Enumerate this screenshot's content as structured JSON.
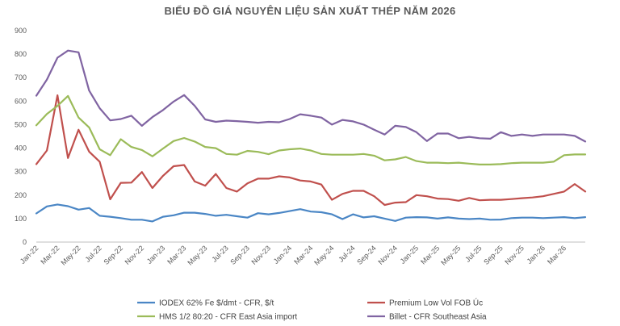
{
  "chart_data": {
    "type": "line",
    "title": "BIỂU ĐỒ GIÁ NGUYÊN LIỆU SẢN XUẤT THÉP NĂM 2026",
    "xlabel": "",
    "ylabel": "",
    "ylim": [
      0,
      900
    ],
    "yticks": [
      0,
      100,
      200,
      300,
      400,
      500,
      600,
      700,
      800,
      900
    ],
    "grid": false,
    "legend_position": "bottom",
    "x_tick_labels": [
      "Jan-22",
      "Mar-22",
      "May-22",
      "Jul-22",
      "Sep-22",
      "Nov-22",
      "Jan-23",
      "Mar-23",
      "May-23",
      "Jul-23",
      "Sep-23",
      "Nov-23",
      "Jan-24",
      "Mar-24",
      "May-24",
      "Jul-24",
      "Sep-24",
      "Nov-24",
      "Jan-25",
      "Mar-25",
      "May-25",
      "Jul-25",
      "Sep-25",
      "Nov-25",
      "Jan-26",
      "Mar-26"
    ],
    "x_step_months": 2,
    "series": [
      {
        "name": "IODEX 62% Fe $/dmt - CFR, $/t",
        "color": "#4a86c5",
        "values": [
          122,
          152,
          160,
          153,
          138,
          145,
          112,
          108,
          102,
          95,
          95,
          88,
          108,
          114,
          125,
          125,
          120,
          112,
          116,
          110,
          104,
          123,
          118,
          124,
          132,
          140,
          130,
          127,
          118,
          98,
          118,
          105,
          110,
          100,
          90,
          104,
          106,
          105,
          100,
          105,
          100,
          98,
          100,
          95,
          96,
          102,
          104,
          104,
          102,
          104,
          106,
          102,
          106
        ]
      },
      {
        "name": "Premium Low Vol FOB Úc",
        "color": "#c0504d",
        "values": [
          332,
          390,
          625,
          358,
          478,
          385,
          342,
          182,
          252,
          253,
          298,
          230,
          282,
          323,
          328,
          258,
          240,
          290,
          230,
          215,
          250,
          270,
          270,
          280,
          275,
          262,
          258,
          245,
          180,
          205,
          218,
          218,
          195,
          158,
          168,
          170,
          200,
          195,
          185,
          183,
          176,
          188,
          178,
          180,
          180,
          183,
          187,
          190,
          195,
          205,
          215,
          247,
          215
        ]
      },
      {
        "name": "HMS 1/2 80:20 - CFR East Asia import",
        "color": "#9bbb59",
        "values": [
          497,
          545,
          580,
          622,
          530,
          488,
          395,
          370,
          438,
          405,
          392,
          365,
          398,
          430,
          443,
          428,
          405,
          400,
          375,
          372,
          388,
          384,
          374,
          390,
          395,
          398,
          390,
          375,
          372,
          372,
          372,
          375,
          368,
          348,
          352,
          362,
          345,
          338,
          338,
          336,
          338,
          334,
          330,
          330,
          332,
          336,
          338,
          338,
          338,
          342,
          370,
          373,
          373
        ]
      },
      {
        "name": "Billet - CFR Southeast Asia",
        "color": "#8064a2",
        "values": [
          623,
          692,
          785,
          815,
          808,
          645,
          570,
          518,
          524,
          538,
          495,
          532,
          562,
          598,
          626,
          580,
          522,
          512,
          517,
          515,
          512,
          508,
          512,
          510,
          524,
          544,
          538,
          530,
          500,
          520,
          514,
          500,
          478,
          458,
          495,
          490,
          468,
          430,
          462,
          462,
          442,
          448,
          442,
          440,
          468,
          452,
          458,
          452,
          458,
          458,
          458,
          452,
          428
        ]
      }
    ]
  }
}
